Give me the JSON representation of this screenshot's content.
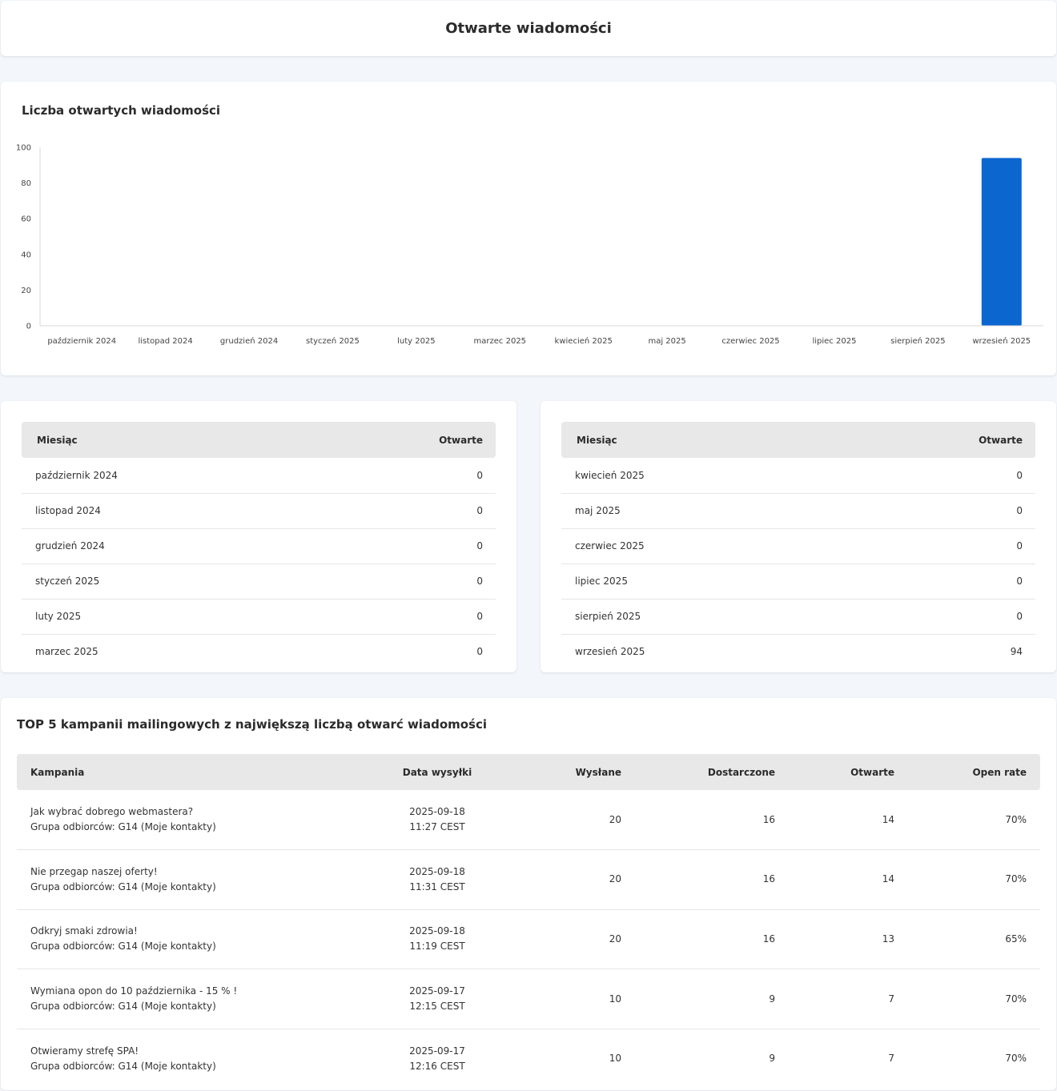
{
  "header": {
    "title": "Otwarte wiadomości"
  },
  "chart_section": {
    "title": "Liczba otwartych wiadomości"
  },
  "chart_data": {
    "type": "bar",
    "title": "Liczba otwartych wiadomości",
    "categories": [
      "październik 2024",
      "listopad 2024",
      "grudzień 2024",
      "styczeń 2025",
      "luty 2025",
      "marzec 2025",
      "kwiecień 2025",
      "maj 2025",
      "czerwiec 2025",
      "lipiec 2025",
      "sierpień 2025",
      "wrzesień 2025"
    ],
    "values": [
      0,
      0,
      0,
      0,
      0,
      0,
      0,
      0,
      0,
      0,
      0,
      94
    ],
    "ylim": [
      0,
      100
    ],
    "yticks": [
      "0",
      "20",
      "40",
      "60",
      "80",
      "100"
    ],
    "xlabel": "",
    "ylabel": "",
    "grid": false,
    "bar_color": "#0b66d0"
  },
  "monthly_table_left": {
    "headers": {
      "month": "Miesiąc",
      "opened": "Otwarte"
    },
    "rows": [
      {
        "month": "październik 2024",
        "opened": "0"
      },
      {
        "month": "listopad 2024",
        "opened": "0"
      },
      {
        "month": "grudzień 2024",
        "opened": "0"
      },
      {
        "month": "styczeń 2025",
        "opened": "0"
      },
      {
        "month": "luty 2025",
        "opened": "0"
      },
      {
        "month": "marzec 2025",
        "opened": "0"
      }
    ]
  },
  "monthly_table_right": {
    "headers": {
      "month": "Miesiąc",
      "opened": "Otwarte"
    },
    "rows": [
      {
        "month": "kwiecień 2025",
        "opened": "0"
      },
      {
        "month": "maj 2025",
        "opened": "0"
      },
      {
        "month": "czerwiec 2025",
        "opened": "0"
      },
      {
        "month": "lipiec 2025",
        "opened": "0"
      },
      {
        "month": "sierpień 2025",
        "opened": "0"
      },
      {
        "month": "wrzesień 2025",
        "opened": "94"
      }
    ]
  },
  "top_campaigns": {
    "title": "TOP 5 kampanii mailingowych z największą liczbą otwarć wiadomości",
    "headers": {
      "campaign": "Kampania",
      "date": "Data wysyłki",
      "sent": "Wysłane",
      "delivered": "Dostarczone",
      "opened": "Otwarte",
      "open_rate": "Open rate"
    },
    "rows": [
      {
        "name": "Jak wybrać dobrego webmastera?",
        "group": "Grupa odbiorców: G14 (Moje kontakty)",
        "date": "2025-09-18",
        "time": "11:27 CEST",
        "sent": "20",
        "delivered": "16",
        "opened": "14",
        "open_rate": "70%"
      },
      {
        "name": "Nie przegap naszej oferty!",
        "group": "Grupa odbiorców: G14 (Moje kontakty)",
        "date": "2025-09-18",
        "time": "11:31 CEST",
        "sent": "20",
        "delivered": "16",
        "opened": "14",
        "open_rate": "70%"
      },
      {
        "name": "Odkryj smaki zdrowia!",
        "group": "Grupa odbiorców: G14 (Moje kontakty)",
        "date": "2025-09-18",
        "time": "11:19 CEST",
        "sent": "20",
        "delivered": "16",
        "opened": "13",
        "open_rate": "65%"
      },
      {
        "name": "Wymiana opon do 10 października - 15 % !",
        "group": "Grupa odbiorców: G14 (Moje kontakty)",
        "date": "2025-09-17",
        "time": "12:15 CEST",
        "sent": "10",
        "delivered": "9",
        "opened": "7",
        "open_rate": "70%"
      },
      {
        "name": "Otwieramy strefę SPA!",
        "group": "Grupa odbiorców: G14 (Moje kontakty)",
        "date": "2025-09-17",
        "time": "12:16 CEST",
        "sent": "10",
        "delivered": "9",
        "opened": "7",
        "open_rate": "70%"
      }
    ]
  }
}
